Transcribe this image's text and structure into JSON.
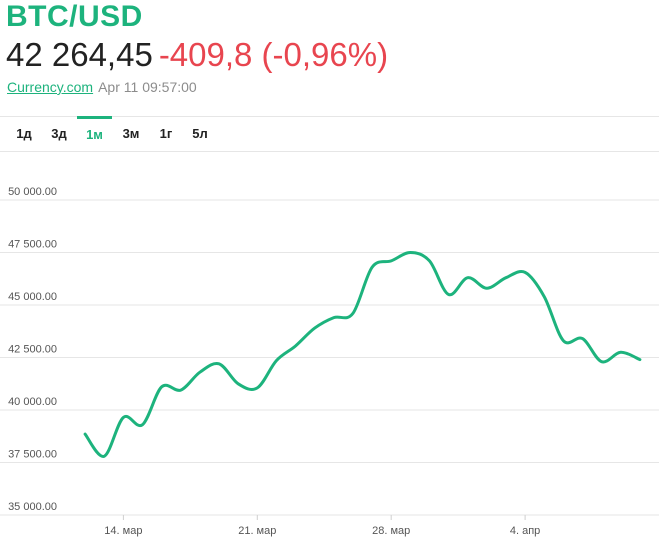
{
  "header": {
    "pair": "BTC/USD",
    "price": "42 264,45",
    "change": "-409,8 (-0,96%)",
    "source": "Currency.com",
    "timestamp": "Apr 11 09:57:00"
  },
  "tabs": [
    {
      "label": "1д",
      "active": false
    },
    {
      "label": "3д",
      "active": false
    },
    {
      "label": "1м",
      "active": true
    },
    {
      "label": "3м",
      "active": false
    },
    {
      "label": "1г",
      "active": false
    },
    {
      "label": "5л",
      "active": false
    }
  ],
  "colors": {
    "accent": "#1db37d",
    "negative": "#e8454f",
    "grid": "#e6e6e6",
    "axis_text": "#555555"
  },
  "chart_data": {
    "type": "line",
    "title": "",
    "xlabel": "",
    "ylabel": "",
    "ylim": [
      35000,
      50000
    ],
    "xlim": [
      "2022-03-11",
      "2022-04-11"
    ],
    "y_ticks": [
      {
        "value": 50000,
        "label": "50 000.00"
      },
      {
        "value": 47500,
        "label": "47 500.00"
      },
      {
        "value": 45000,
        "label": "45 000.00"
      },
      {
        "value": 42500,
        "label": "42 500.00"
      },
      {
        "value": 40000,
        "label": "40 000.00"
      },
      {
        "value": 37500,
        "label": "37 500.00"
      },
      {
        "value": 35000,
        "label": "35 000.00"
      }
    ],
    "x_ticks": [
      {
        "value": "2022-03-14",
        "label": "14. мар"
      },
      {
        "value": "2022-03-21",
        "label": "21. мар"
      },
      {
        "value": "2022-03-28",
        "label": "28. мар"
      },
      {
        "value": "2022-04-04",
        "label": "4. апр"
      }
    ],
    "grid": true,
    "series": [
      {
        "color": "#1db37d",
        "points": [
          {
            "x": "2022-03-12",
            "y": 38850
          },
          {
            "x": "2022-03-13",
            "y": 37800
          },
          {
            "x": "2022-03-14",
            "y": 39650
          },
          {
            "x": "2022-03-15",
            "y": 39300
          },
          {
            "x": "2022-03-16",
            "y": 41100
          },
          {
            "x": "2022-03-17",
            "y": 40950
          },
          {
            "x": "2022-03-18",
            "y": 41800
          },
          {
            "x": "2022-03-19",
            "y": 42200
          },
          {
            "x": "2022-03-20",
            "y": 41250
          },
          {
            "x": "2022-03-21",
            "y": 41050
          },
          {
            "x": "2022-03-22",
            "y": 42350
          },
          {
            "x": "2022-03-23",
            "y": 43050
          },
          {
            "x": "2022-03-24",
            "y": 43900
          },
          {
            "x": "2022-03-25",
            "y": 44400
          },
          {
            "x": "2022-03-26",
            "y": 44600
          },
          {
            "x": "2022-03-27",
            "y": 46800
          },
          {
            "x": "2022-03-28",
            "y": 47100
          },
          {
            "x": "2022-03-29",
            "y": 47500
          },
          {
            "x": "2022-03-30",
            "y": 47100
          },
          {
            "x": "2022-03-31",
            "y": 45500
          },
          {
            "x": "2022-04-01",
            "y": 46300
          },
          {
            "x": "2022-04-02",
            "y": 45800
          },
          {
            "x": "2022-04-03",
            "y": 46300
          },
          {
            "x": "2022-04-04",
            "y": 46550
          },
          {
            "x": "2022-04-05",
            "y": 45400
          },
          {
            "x": "2022-04-06",
            "y": 43300
          },
          {
            "x": "2022-04-07",
            "y": 43400
          },
          {
            "x": "2022-04-08",
            "y": 42300
          },
          {
            "x": "2022-04-09",
            "y": 42750
          },
          {
            "x": "2022-04-10",
            "y": 42400
          }
        ]
      }
    ]
  }
}
